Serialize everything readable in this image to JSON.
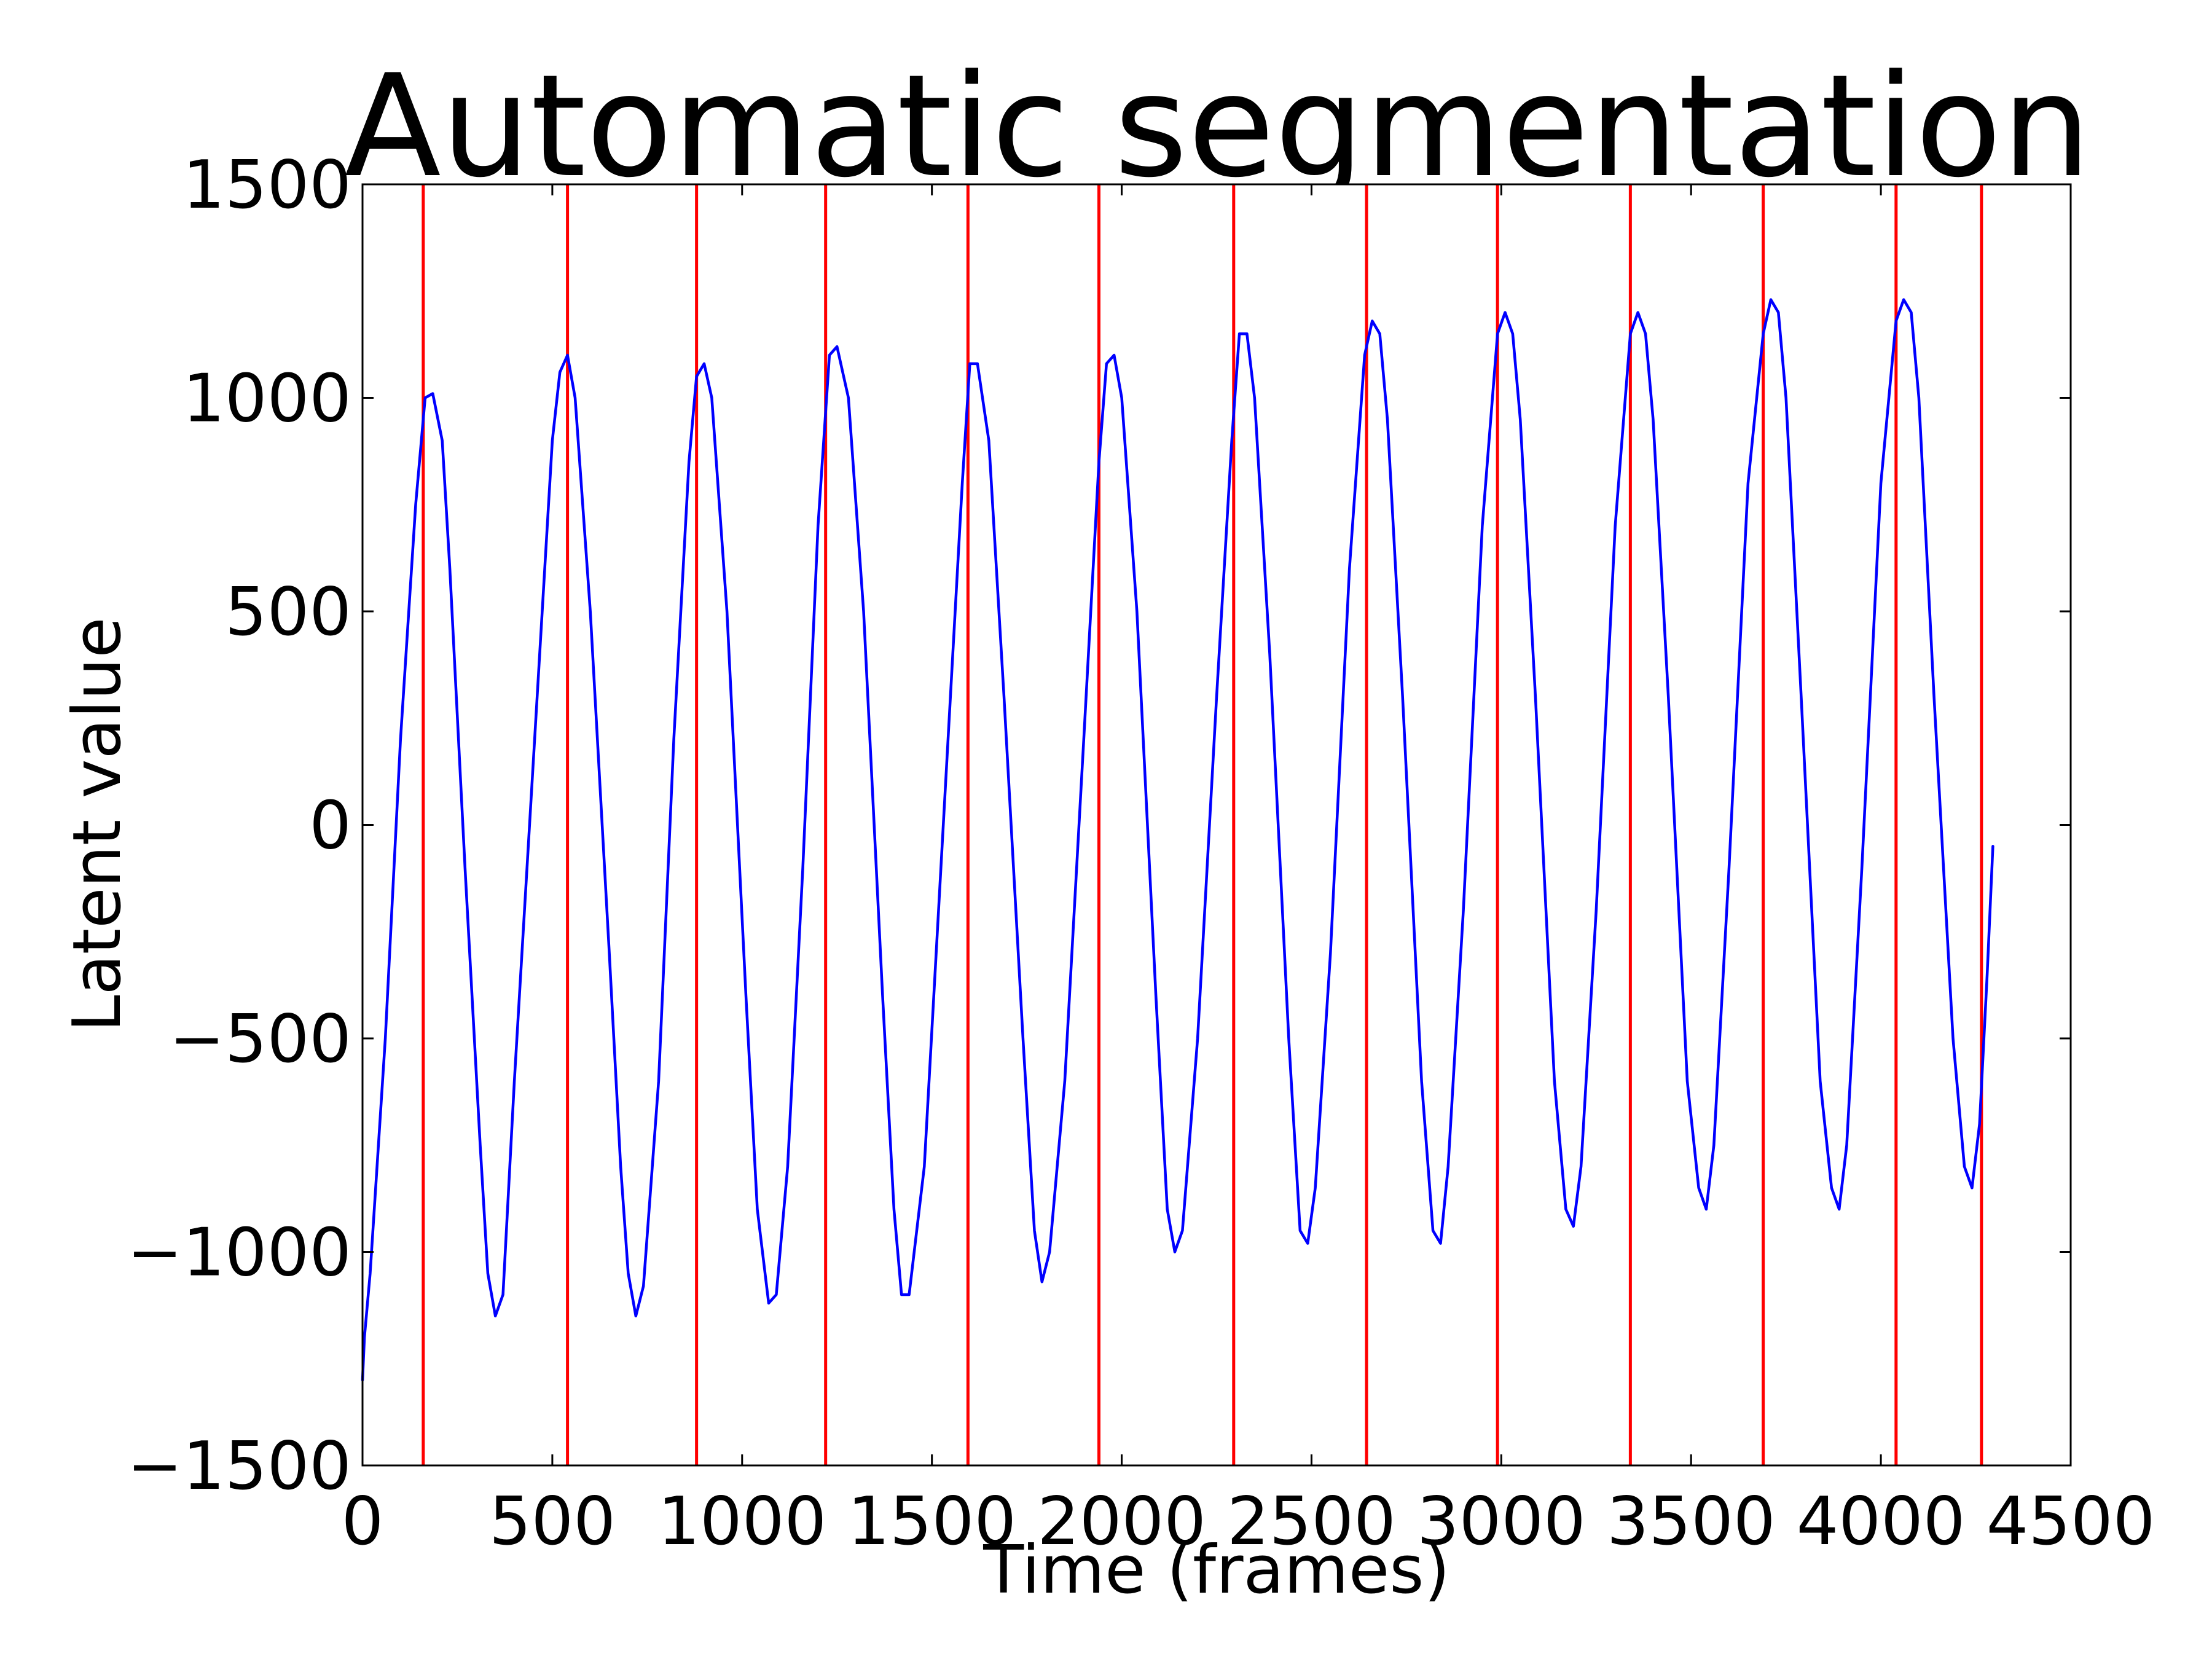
{
  "chart_data": {
    "type": "line",
    "title": "Automatic segmentation",
    "xlabel": "Time (frames)",
    "ylabel": "Latent value",
    "xlim": [
      0,
      4500
    ],
    "ylim": [
      -1500,
      1500
    ],
    "xticks": [
      0,
      500,
      1000,
      1500,
      2000,
      2500,
      3000,
      3500,
      4000,
      4500
    ],
    "yticks": [
      -1500,
      -1000,
      -500,
      0,
      500,
      1000,
      1500
    ],
    "xtick_labels": [
      "0",
      "500",
      "1000",
      "1500",
      "2000",
      "2500",
      "3000",
      "3500",
      "4000",
      "4500"
    ],
    "ytick_labels": [
      "−1500",
      "−1000",
      "−500",
      "0",
      "500",
      "1000",
      "1500"
    ],
    "grid": false,
    "series": [
      {
        "color": "#0000ff",
        "x": [
          0,
          5,
          20,
          60,
          100,
          140,
          165,
          185,
          210,
          230,
          270,
          310,
          330,
          350,
          370,
          400,
          460,
          500,
          520,
          540,
          560,
          600,
          650,
          680,
          700,
          720,
          740,
          780,
          820,
          860,
          880,
          900,
          920,
          960,
          1010,
          1040,
          1070,
          1090,
          1120,
          1160,
          1200,
          1230,
          1250,
          1280,
          1320,
          1370,
          1400,
          1420,
          1440,
          1480,
          1530,
          1580,
          1600,
          1620,
          1650,
          1690,
          1740,
          1770,
          1790,
          1810,
          1850,
          1900,
          1940,
          1960,
          1980,
          2000,
          2040,
          2090,
          2120,
          2140,
          2160,
          2200,
          2250,
          2290,
          2310,
          2330,
          2350,
          2390,
          2440,
          2470,
          2490,
          2510,
          2550,
          2600,
          2640,
          2660,
          2680,
          2700,
          2740,
          2790,
          2820,
          2840,
          2860,
          2900,
          2950,
          2990,
          3010,
          3030,
          3050,
          3090,
          3140,
          3170,
          3190,
          3210,
          3250,
          3300,
          3340,
          3360,
          3380,
          3400,
          3440,
          3490,
          3520,
          3540,
          3560,
          3600,
          3650,
          3690,
          3710,
          3730,
          3750,
          3790,
          3840,
          3870,
          3890,
          3910,
          3950,
          4000,
          4040,
          4060,
          4080,
          4100,
          4140,
          4190,
          4220,
          4240,
          4260,
          4280,
          4295
        ],
        "y": [
          -1300,
          -1200,
          -1050,
          -500,
          200,
          750,
          1000,
          1010,
          900,
          600,
          -100,
          -750,
          -1050,
          -1150,
          -1100,
          -600,
          300,
          900,
          1060,
          1100,
          1000,
          500,
          -300,
          -800,
          -1050,
          -1150,
          -1080,
          -600,
          200,
          850,
          1050,
          1080,
          1000,
          500,
          -400,
          -900,
          -1120,
          -1100,
          -800,
          -100,
          700,
          1100,
          1120,
          1000,
          500,
          -400,
          -900,
          -1100,
          -1100,
          -800,
          0,
          800,
          1080,
          1080,
          900,
          300,
          -500,
          -950,
          -1070,
          -1000,
          -600,
          200,
          850,
          1080,
          1100,
          1000,
          500,
          -400,
          -900,
          -1000,
          -950,
          -500,
          300,
          900,
          1150,
          1150,
          1000,
          400,
          -500,
          -950,
          -980,
          -850,
          -300,
          600,
          1100,
          1180,
          1150,
          950,
          300,
          -600,
          -950,
          -980,
          -800,
          -200,
          700,
          1150,
          1200,
          1150,
          950,
          300,
          -600,
          -900,
          -940,
          -800,
          -200,
          700,
          1150,
          1200,
          1150,
          950,
          300,
          -600,
          -850,
          -900,
          -750,
          -100,
          800,
          1150,
          1230,
          1200,
          1000,
          300,
          -600,
          -850,
          -900,
          -750,
          -100,
          800,
          1180,
          1230,
          1200,
          1000,
          300,
          -500,
          -800,
          -850,
          -700,
          -350,
          -50
        ]
      }
    ],
    "segment_lines": {
      "color": "#ff0000",
      "x": [
        160,
        540,
        880,
        1220,
        1595,
        1940,
        2295,
        2645,
        2990,
        3340,
        3690,
        4040,
        4265
      ]
    }
  }
}
